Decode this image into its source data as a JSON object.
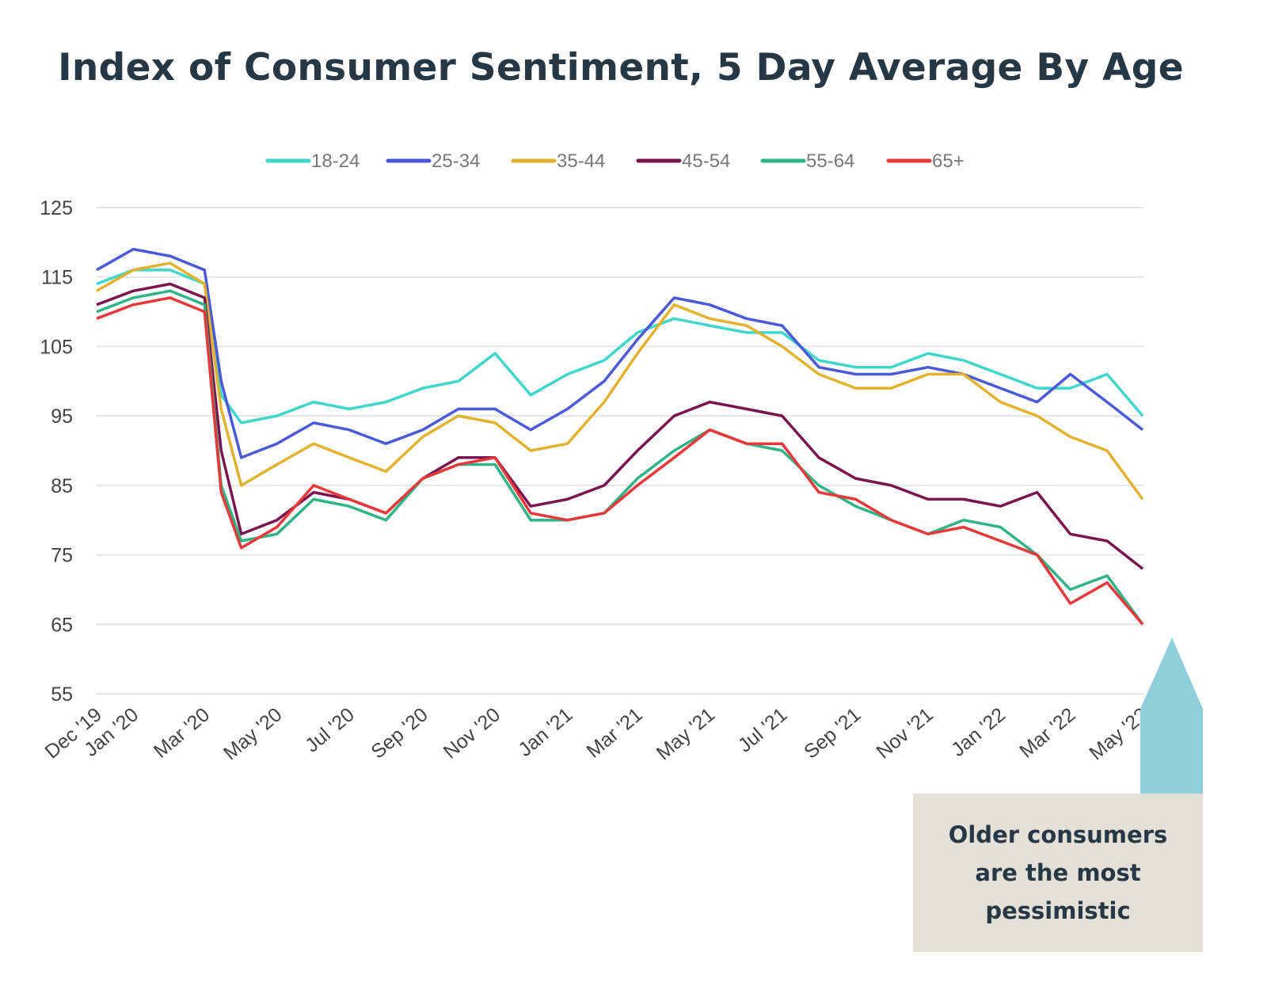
{
  "chart_data": {
    "type": "line",
    "title": "Index of Consumer Sentiment, 5 Day Average By Age",
    "xlabel": "",
    "ylabel": "",
    "ylim": [
      55,
      125
    ],
    "yticks": [
      125,
      115,
      105,
      95,
      85,
      75,
      65,
      55
    ],
    "grid": true,
    "legend_position": "top",
    "xtick_dates": [
      "2019-12-01",
      "2020-01-01",
      "2020-03-01",
      "2020-05-01",
      "2020-07-01",
      "2020-09-01",
      "2020-11-01",
      "2021-01-01",
      "2021-03-01",
      "2021-05-01",
      "2021-07-01",
      "2021-09-01",
      "2021-11-01",
      "2022-01-01",
      "2022-03-01",
      "2022-05-01"
    ],
    "xtick_labels": [
      "Dec '19",
      "Jan '20",
      "Mar '20",
      "May '20",
      "Jul '20",
      "Sep '20",
      "Nov '20",
      "Jan '21",
      "Mar '21",
      "May '21",
      "Jul '21",
      "Sep '21",
      "Nov '21",
      "Jan '22",
      "Mar '22",
      "May '22"
    ],
    "x": [
      "2019-12-01",
      "2020-01-01",
      "2020-02-01",
      "2020-03-01",
      "2020-03-15",
      "2020-04-01",
      "2020-05-01",
      "2020-06-01",
      "2020-07-01",
      "2020-08-01",
      "2020-09-01",
      "2020-10-01",
      "2020-11-01",
      "2020-12-01",
      "2021-01-01",
      "2021-02-01",
      "2021-03-01",
      "2021-04-01",
      "2021-05-01",
      "2021-06-01",
      "2021-07-01",
      "2021-08-01",
      "2021-09-01",
      "2021-10-01",
      "2021-11-01",
      "2021-12-01",
      "2022-01-01",
      "2022-02-01",
      "2022-03-01",
      "2022-04-01",
      "2022-05-01"
    ],
    "series": [
      {
        "name": "18-24",
        "color": "#3fd6cc",
        "values": [
          114,
          116,
          116,
          114,
          98,
          94,
          95,
          97,
          96,
          97,
          99,
          100,
          104,
          98,
          101,
          103,
          107,
          109,
          108,
          107,
          107,
          103,
          102,
          102,
          104,
          103,
          101,
          99,
          99,
          101,
          95
        ]
      },
      {
        "name": "25-34",
        "color": "#4a5ad8",
        "values": [
          116,
          119,
          118,
          116,
          100,
          89,
          91,
          94,
          93,
          91,
          93,
          96,
          96,
          93,
          96,
          100,
          106,
          112,
          111,
          109,
          108,
          102,
          101,
          101,
          102,
          101,
          99,
          97,
          101,
          97,
          93
        ]
      },
      {
        "name": "35-44",
        "color": "#e2b22e",
        "values": [
          113,
          116,
          117,
          114,
          96,
          85,
          88,
          91,
          89,
          87,
          92,
          95,
          94,
          90,
          91,
          97,
          104,
          111,
          109,
          108,
          105,
          101,
          99,
          99,
          101,
          101,
          97,
          95,
          92,
          90,
          83
        ]
      },
      {
        "name": "45-54",
        "color": "#7a1550",
        "values": [
          111,
          113,
          114,
          112,
          90,
          78,
          80,
          84,
          83,
          81,
          86,
          89,
          89,
          82,
          83,
          85,
          90,
          95,
          97,
          96,
          95,
          89,
          86,
          85,
          83,
          83,
          82,
          84,
          78,
          77,
          73
        ]
      },
      {
        "name": "55-64",
        "color": "#2fb585",
        "values": [
          110,
          112,
          113,
          111,
          85,
          77,
          78,
          83,
          82,
          80,
          86,
          88,
          88,
          80,
          80,
          81,
          86,
          90,
          93,
          91,
          90,
          85,
          82,
          80,
          78,
          80,
          79,
          75,
          70,
          72,
          65
        ]
      },
      {
        "name": "65+",
        "color": "#e8383a",
        "values": [
          109,
          111,
          112,
          110,
          84,
          76,
          79,
          85,
          83,
          81,
          86,
          88,
          89,
          81,
          80,
          81,
          85,
          89,
          93,
          91,
          91,
          84,
          83,
          80,
          78,
          79,
          77,
          75,
          68,
          71,
          65
        ]
      }
    ],
    "annotation": {
      "text": "Older consumers are the most pessimistic",
      "box_color": "#e3e0d8",
      "arrow_color": "#8ecfda"
    }
  }
}
